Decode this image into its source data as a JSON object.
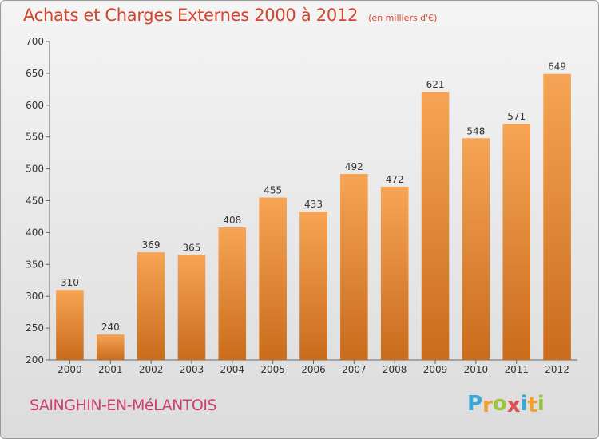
{
  "header": {
    "title": "Achats et Charges Externes 2000 à 2012",
    "unit": "(en milliers d'€)"
  },
  "footer": {
    "city": "SAINGHIN-EN-MéLANTOIS",
    "logo_letters": [
      "P",
      "r",
      "o",
      "x",
      "i",
      "t",
      "i"
    ],
    "logo_colors": [
      "#3aa7d9",
      "#f0a030",
      "#9bc53d",
      "#e05050",
      "#3aa7d9",
      "#f0a030",
      "#9bc53d"
    ]
  },
  "colors": {
    "bar_top": "#f6a455",
    "bar_bottom": "#c96c1c",
    "title": "#d4452b",
    "city": "#cc3f70"
  },
  "chart_data": {
    "type": "bar",
    "categories": [
      "2000",
      "2001",
      "2002",
      "2003",
      "2004",
      "2005",
      "2006",
      "2007",
      "2008",
      "2009",
      "2010",
      "2011",
      "2012"
    ],
    "values": [
      310,
      240,
      369,
      365,
      408,
      455,
      433,
      492,
      472,
      621,
      548,
      571,
      649
    ],
    "ylim": [
      200,
      700
    ],
    "yticks": [
      200,
      250,
      300,
      350,
      400,
      450,
      500,
      550,
      600,
      650,
      700
    ],
    "grid": false,
    "data_labels": true
  }
}
